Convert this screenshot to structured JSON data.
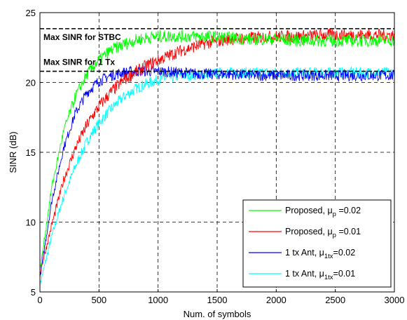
{
  "chart_data": {
    "type": "line",
    "title": "",
    "xlabel": "Num. of symbols",
    "ylabel": "SINR (dB)",
    "xlim": [
      0,
      3000
    ],
    "ylim": [
      5,
      25
    ],
    "xticks": [
      0,
      500,
      1000,
      1500,
      2000,
      2500,
      3000
    ],
    "yticks": [
      5,
      10,
      15,
      20,
      25
    ],
    "grid": true,
    "legend_position": "bottom-right",
    "series": [
      {
        "name_text": "Proposed, ",
        "name_symbol": "μ",
        "name_sub": "p",
        "name_tail": " =0.02",
        "color": "#00ff00",
        "x": [
          0,
          100,
          200,
          300,
          400,
          500,
          600,
          700,
          800,
          900,
          1000,
          1200,
          1400,
          1600,
          1800,
          2000,
          2200,
          2400,
          2600,
          2800,
          3000
        ],
        "values": [
          6.5,
          12.5,
          16.5,
          19.0,
          20.6,
          21.6,
          22.3,
          22.7,
          23.0,
          23.2,
          23.3,
          23.3,
          23.3,
          23.2,
          23.1,
          23.1,
          23.0,
          23.0,
          23.0,
          23.0,
          23.0
        ],
        "noise": 0.45
      },
      {
        "name_text": "Proposed, ",
        "name_symbol": "μ",
        "name_sub": "p",
        "name_tail": " =0.01",
        "color": "#ff0000",
        "x": [
          0,
          100,
          200,
          300,
          400,
          500,
          600,
          700,
          800,
          900,
          1000,
          1200,
          1400,
          1600,
          1800,
          2000,
          2200,
          2400,
          2600,
          2800,
          3000
        ],
        "values": [
          6.3,
          9.8,
          13.0,
          15.3,
          17.0,
          18.3,
          19.3,
          20.1,
          20.7,
          21.2,
          21.6,
          22.3,
          22.8,
          23.1,
          23.2,
          23.3,
          23.3,
          23.4,
          23.4,
          23.4,
          23.4
        ],
        "noise": 0.45
      },
      {
        "name_text": "1 tx Ant, ",
        "name_symbol": "μ",
        "name_sub": "1tx",
        "name_tail": "=0.02",
        "color": "#0000ff",
        "x": [
          0,
          100,
          200,
          300,
          400,
          500,
          600,
          700,
          800,
          900,
          1000,
          1200,
          1400,
          1600,
          1800,
          2000,
          2200,
          2400,
          2600,
          2800,
          3000
        ],
        "values": [
          6.0,
          11.5,
          15.3,
          17.8,
          19.3,
          20.1,
          20.5,
          20.7,
          20.8,
          20.8,
          20.8,
          20.7,
          20.6,
          20.6,
          20.5,
          20.5,
          20.5,
          20.5,
          20.5,
          20.5,
          20.5
        ],
        "noise": 0.4
      },
      {
        "name_text": "1 tx Ant, ",
        "name_symbol": "μ",
        "name_sub": "1tx",
        "name_tail": "=0.01",
        "color": "#00ffff",
        "x": [
          0,
          100,
          200,
          300,
          400,
          500,
          600,
          700,
          800,
          900,
          1000,
          1200,
          1400,
          1600,
          1800,
          2000,
          2200,
          2400,
          2600,
          2800,
          3000
        ],
        "values": [
          5.5,
          9.0,
          11.8,
          14.0,
          15.8,
          17.1,
          18.1,
          18.9,
          19.5,
          19.9,
          20.2,
          20.5,
          20.6,
          20.7,
          20.7,
          20.7,
          20.7,
          20.7,
          20.7,
          20.7,
          20.7
        ],
        "noise": 0.4
      }
    ],
    "reference_lines": [
      {
        "y": 23.85,
        "label": "Max SINR for STBC",
        "label_x": 30,
        "label_y": 23.25
      },
      {
        "y": 20.8,
        "label": "Max SINR for 1 Tx",
        "label_x": 30,
        "label_y": 21.45
      }
    ]
  }
}
